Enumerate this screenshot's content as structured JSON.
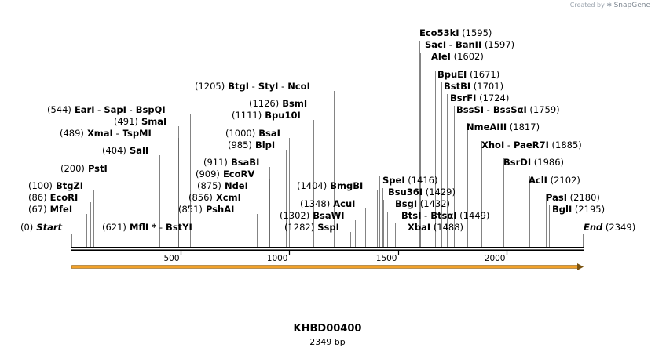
{
  "credit": {
    "prefix": "Created by",
    "brand": "SnapGene"
  },
  "sequence": {
    "name": "KHBD00400",
    "length_label": "2349 bp",
    "length": 2349
  },
  "ruler_ticks": [
    {
      "pos": 500,
      "label": "500"
    },
    {
      "pos": 1000,
      "label": "1000"
    },
    {
      "pos": 1500,
      "label": "1500"
    },
    {
      "pos": 2000,
      "label": "2000"
    }
  ],
  "feature": {
    "name": "forward-arrow",
    "start": 0,
    "end": 2349,
    "color": "#f1a12a"
  },
  "colors": {
    "label": "#000000",
    "leader": "#666666",
    "backbone": "#000000"
  },
  "sites": [
    {
      "pos": 0,
      "parts": [
        "(0)",
        "Start"
      ],
      "kind": "start"
    },
    {
      "pos": 2349,
      "parts": [
        "End",
        "(2349)"
      ],
      "kind": "end"
    },
    {
      "pos": 67,
      "parts": [
        "(67)",
        "MfeI"
      ]
    },
    {
      "pos": 86,
      "parts": [
        "(86)",
        "EcoRI"
      ]
    },
    {
      "pos": 100,
      "parts": [
        "(100)",
        "BtgZI"
      ]
    },
    {
      "pos": 200,
      "parts": [
        "(200)",
        "PstI"
      ]
    },
    {
      "pos": 404,
      "parts": [
        "(404)",
        "SalI"
      ]
    },
    {
      "pos": 489,
      "parts": [
        "(489)",
        "XmaI",
        "-",
        "TspMI"
      ]
    },
    {
      "pos": 491,
      "parts": [
        "(491)",
        "SmaI"
      ]
    },
    {
      "pos": 544,
      "parts": [
        "(544)",
        "EarI",
        "-",
        "SapI",
        "-",
        "BspQI"
      ]
    },
    {
      "pos": 621,
      "parts": [
        "(621)",
        "MflI",
        "*",
        "-",
        "BstYI"
      ]
    },
    {
      "pos": 851,
      "parts": [
        "(851)",
        "PshAI"
      ]
    },
    {
      "pos": 856,
      "parts": [
        "(856)",
        "XcmI"
      ]
    },
    {
      "pos": 875,
      "parts": [
        "(875)",
        "NdeI"
      ]
    },
    {
      "pos": 909,
      "parts": [
        "(909)",
        "EcoRV"
      ]
    },
    {
      "pos": 911,
      "parts": [
        "(911)",
        "BsaBI"
      ]
    },
    {
      "pos": 985,
      "parts": [
        "(985)",
        "BlpI"
      ]
    },
    {
      "pos": 1000,
      "parts": [
        "(1000)",
        "BsaI"
      ]
    },
    {
      "pos": 1111,
      "parts": [
        "(1111)",
        "Bpu10I"
      ]
    },
    {
      "pos": 1126,
      "parts": [
        "(1126)",
        "BsmI"
      ]
    },
    {
      "pos": 1205,
      "parts": [
        "(1205)",
        "BtgI",
        "-",
        "StyI",
        "-",
        "NcoI"
      ]
    },
    {
      "pos": 1282,
      "parts": [
        "(1282)",
        "SspI"
      ]
    },
    {
      "pos": 1302,
      "parts": [
        "(1302)",
        "BsaWI"
      ]
    },
    {
      "pos": 1348,
      "parts": [
        "(1348)",
        "AcuI"
      ]
    },
    {
      "pos": 1404,
      "parts": [
        "(1404)",
        "BmgBI"
      ]
    },
    {
      "pos": 1416,
      "parts": [
        "SpeI",
        "(1416)"
      ]
    },
    {
      "pos": 1429,
      "parts": [
        "Bsu36I",
        "(1429)"
      ]
    },
    {
      "pos": 1432,
      "parts": [
        "BsgI",
        "(1432)"
      ]
    },
    {
      "pos": 1449,
      "parts": [
        "BtsI",
        "-",
        "BtsαI",
        "(1449)"
      ]
    },
    {
      "pos": 1488,
      "parts": [
        "XbaI",
        "(1488)"
      ]
    },
    {
      "pos": 1595,
      "parts": [
        "Eco53kI",
        "(1595)"
      ]
    },
    {
      "pos": 1597,
      "parts": [
        "SacI",
        "-",
        "BanII",
        "(1597)"
      ]
    },
    {
      "pos": 1602,
      "parts": [
        "AleI",
        "(1602)"
      ]
    },
    {
      "pos": 1671,
      "parts": [
        "BpuEI",
        "(1671)"
      ]
    },
    {
      "pos": 1701,
      "parts": [
        "BstBI",
        "(1701)"
      ]
    },
    {
      "pos": 1724,
      "parts": [
        "BsrFI",
        "(1724)"
      ]
    },
    {
      "pos": 1759,
      "parts": [
        "BssSI",
        "-",
        "BssSαI",
        "(1759)"
      ]
    },
    {
      "pos": 1817,
      "parts": [
        "NmeAIII",
        "(1817)"
      ]
    },
    {
      "pos": 1885,
      "parts": [
        "XhoI",
        "-",
        "PaeR7I",
        "(1885)"
      ]
    },
    {
      "pos": 1986,
      "parts": [
        "BsrDI",
        "(1986)"
      ]
    },
    {
      "pos": 2102,
      "parts": [
        "AclI",
        "(2102)"
      ]
    },
    {
      "pos": 2180,
      "parts": [
        "PasI",
        "(2180)"
      ]
    },
    {
      "pos": 2195,
      "parts": [
        "BglI",
        "(2195)"
      ]
    }
  ]
}
